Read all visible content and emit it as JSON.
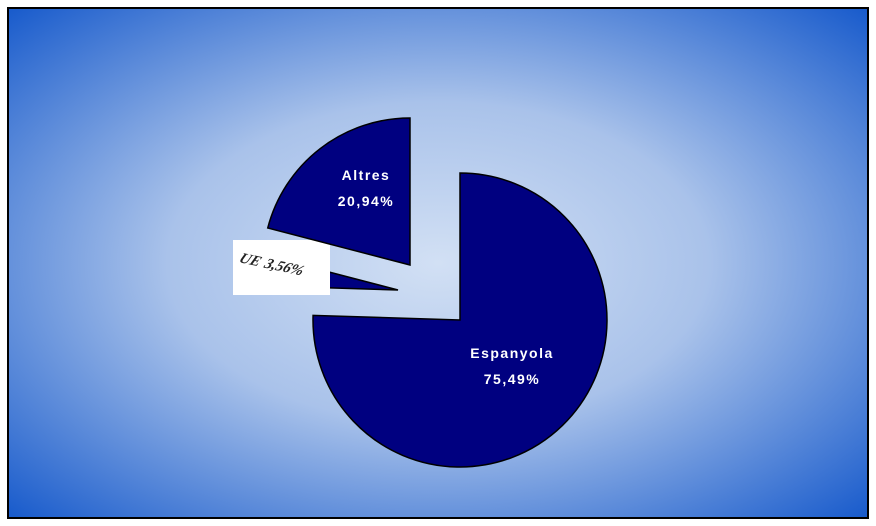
{
  "chart_data": {
    "type": "pie",
    "categories": [
      "Espanyola",
      "UE",
      "Altres"
    ],
    "values": [
      75.49,
      3.56,
      20.94
    ],
    "value_labels": [
      "75,49%",
      "3,56%",
      "20,94%"
    ],
    "color": "#000080"
  }
}
